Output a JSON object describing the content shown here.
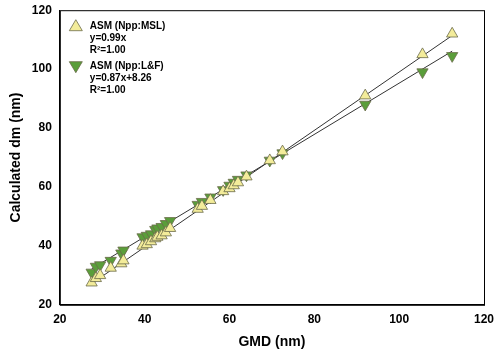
{
  "chart_data": {
    "type": "scatter",
    "x_label": "GMD (nm)",
    "y_label": "Calculated dm (nm)",
    "xlim": [
      20,
      120
    ],
    "xticks": [
      20,
      40,
      60,
      80,
      100,
      120
    ],
    "ylim": [
      20,
      120
    ],
    "yticks": [
      20,
      40,
      60,
      80,
      100,
      120
    ],
    "grid": false,
    "legend": "upper left",
    "x": [
      27.5,
      28.5,
      29.5,
      32,
      34.5,
      35,
      39.5,
      40.5,
      41.5,
      42.5,
      43,
      44,
      45,
      46,
      52.5,
      53.5,
      55.5,
      58.5,
      60,
      61,
      62,
      64,
      69.5,
      72.5,
      92,
      105.5,
      112.5
    ],
    "series": [
      {
        "name": "ASM (Npp:MSL)",
        "color": "#f3ec9a",
        "marker": "triangle",
        "values": [
          27.5,
          29,
          30,
          32.5,
          34,
          35,
          40,
          40.5,
          41.5,
          42.5,
          43,
          43.5,
          44.5,
          46,
          52.5,
          53.5,
          55.5,
          58.5,
          59.5,
          60.5,
          61.5,
          63.5,
          69,
          72,
          91,
          105,
          112
        ],
        "annotations": [
          "y=0.99x",
          "R²=1.00"
        ],
        "fit": {
          "x": [
            27.5,
            112.5
          ],
          "y": [
            27.2,
            111.4
          ]
        }
      },
      {
        "name": "ASM (Npp:L&F)",
        "color": "#5a9e3a",
        "marker": "triangle_down",
        "values": [
          31,
          33,
          33.5,
          35,
          37.5,
          38.5,
          43,
          43.5,
          44,
          45.5,
          46,
          46.5,
          47.5,
          48.5,
          54,
          55,
          56.5,
          59,
          60.5,
          61.5,
          62.5,
          64,
          69,
          71.5,
          88,
          99,
          104.5
        ],
        "annotations": [
          "y=0.87x+8.26",
          "R²=1.00"
        ],
        "fit": {
          "x": [
            27.5,
            112.5
          ],
          "y": [
            32.2,
            106.1
          ]
        }
      }
    ]
  }
}
